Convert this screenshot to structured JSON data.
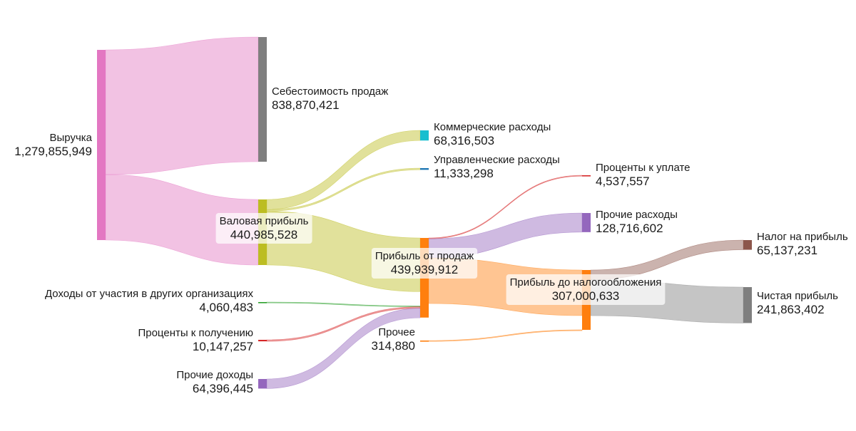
{
  "chart_data": {
    "type": "sankey",
    "title": "",
    "nodes": [
      {
        "id": "revenue",
        "label": "Выручка",
        "value": "1,279,855,949",
        "color": "#e377c2"
      },
      {
        "id": "cogs",
        "label": "Себестоимость продаж",
        "value": "838,870,421",
        "color": "#7f7f7f"
      },
      {
        "id": "gross",
        "label": "Валовая прибыль",
        "value": "440,985,528",
        "color": "#bcbd22"
      },
      {
        "id": "selling",
        "label": "Коммерческие расходы",
        "value": "68,316,503",
        "color": "#17becf"
      },
      {
        "id": "admin",
        "label": "Управленческие расходы",
        "value": "11,333,298",
        "color": "#1f77b4"
      },
      {
        "id": "sales_profit",
        "label": "Прибыль от продаж",
        "value": "439,939,912",
        "color": "#ff7f0e"
      },
      {
        "id": "interest_pay",
        "label": "Проценты к уплате",
        "value": "4,537,557",
        "color": "#d62728"
      },
      {
        "id": "other_exp",
        "label": "Прочие расходы",
        "value": "128,716,602",
        "color": "#9467bd"
      },
      {
        "id": "pretax",
        "label": "Прибыль до налогообложения",
        "value": "307,000,633",
        "color": "#ff7f0e"
      },
      {
        "id": "tax",
        "label": "Налог на прибыль",
        "value": "65,137,231",
        "color": "#8c564b"
      },
      {
        "id": "net",
        "label": "Чистая прибыль",
        "value": "241,863,402",
        "color": "#7f7f7f"
      },
      {
        "id": "participation",
        "label": "Доходы от участия в других организациях",
        "value": "4,060,483",
        "color": "#2ca02c"
      },
      {
        "id": "interest_recv",
        "label": "Проценты к получению",
        "value": "10,147,257",
        "color": "#d62728"
      },
      {
        "id": "other_inc",
        "label": "Прочие доходы",
        "value": "64,396,445",
        "color": "#9467bd"
      },
      {
        "id": "other_misc",
        "label": "Прочее",
        "value": "314,880",
        "color": "#ff7f0e"
      }
    ],
    "links": [
      {
        "source": "revenue",
        "target": "cogs",
        "value": 838870421
      },
      {
        "source": "revenue",
        "target": "gross",
        "value": 440985528
      },
      {
        "source": "gross",
        "target": "selling",
        "value": 68316503
      },
      {
        "source": "gross",
        "target": "admin",
        "value": 11333298
      },
      {
        "source": "gross",
        "target": "sales_profit",
        "value": 361335727
      },
      {
        "source": "participation",
        "target": "sales_profit",
        "value": 4060483
      },
      {
        "source": "interest_recv",
        "target": "sales_profit",
        "value": 10147257
      },
      {
        "source": "other_inc",
        "target": "sales_profit",
        "value": 64396445
      },
      {
        "source": "sales_profit",
        "target": "interest_pay",
        "value": 4537557
      },
      {
        "source": "sales_profit",
        "target": "other_exp",
        "value": 128716602
      },
      {
        "source": "sales_profit",
        "target": "pretax",
        "value": 306685753
      },
      {
        "source": "other_misc",
        "target": "pretax",
        "value": 314880
      },
      {
        "source": "pretax",
        "target": "tax",
        "value": 65137231
      },
      {
        "source": "pretax",
        "target": "net",
        "value": 241863402
      }
    ]
  }
}
